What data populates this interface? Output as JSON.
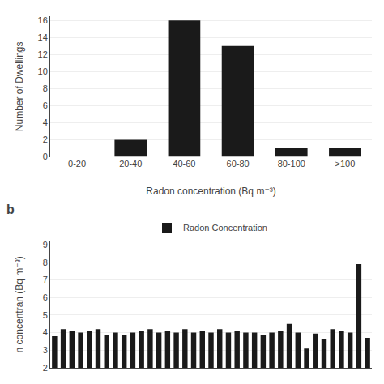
{
  "chart_data": [
    {
      "type": "bar",
      "categories": [
        "0-20",
        "20-40",
        "40-60",
        "60-80",
        "80-100",
        ">100"
      ],
      "values": [
        0,
        2,
        16,
        13,
        1,
        1
      ],
      "color": "#1a1a1a",
      "xlabel": "Radon concentration (Bq m⁻³)",
      "ylabel": "Number of Dwellings",
      "ylim": [
        0,
        16.5
      ],
      "yticks": [
        0,
        2,
        4,
        6,
        8,
        10,
        12,
        14,
        16
      ],
      "grid": true
    },
    {
      "type": "bar",
      "series": [
        {
          "name": "Radon Concentration",
          "color": "#1a1a1a",
          "values": [
            3.8,
            4.2,
            4.1,
            4.0,
            4.1,
            4.2,
            3.85,
            4.0,
            3.85,
            4.0,
            4.1,
            4.2,
            4.0,
            4.1,
            4.0,
            4.2,
            4.0,
            4.1,
            4.0,
            4.2,
            4.0,
            4.1,
            4.0,
            4.0,
            3.85,
            4.0,
            4.1,
            4.5,
            4.0,
            3.1,
            3.95,
            3.65,
            4.2,
            4.1,
            4.0,
            7.9,
            3.7
          ]
        }
      ],
      "ylabel": "n concentran (Bq m⁻³)",
      "ylim": [
        2,
        9.2
      ],
      "yticks": [
        2,
        3,
        4,
        5,
        6,
        7,
        8,
        9
      ],
      "grid": true,
      "legend": "top",
      "tick_labels": "y",
      "annotations": [
        "b"
      ]
    }
  ]
}
